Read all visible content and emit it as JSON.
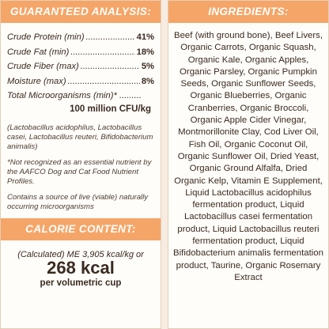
{
  "analysis": {
    "header": "GUARANTEED ANALYSIS:",
    "rows": [
      {
        "name": "Crude Protein (min)",
        "value": "41%"
      },
      {
        "name": "Crude Fat (min)",
        "value": "18%"
      },
      {
        "name": "Crude Fiber (max)",
        "value": "5%"
      },
      {
        "name": "Moisture (max)",
        "value": "8%"
      }
    ],
    "microorganisms_label": "Total Microorganisms (min)*",
    "microorganisms_value": "100 million CFU/kg",
    "strains_note": "(Lactobacillus acidophilus, Lactobacillus casei, Lactobacillus reuteri, Bifidobacterium animalis)",
    "aafco_note": "*Not recognized as an essential nutrient by the AAFCO Dog and Cat Food Nutrient Profiles.",
    "live_note": "Contains a source of live (viable) naturally occurring microorganisms"
  },
  "calorie": {
    "header": "CALORIE CONTENT:",
    "calculated": "(Calculated) ME 3,905 kcal/kg or",
    "kcal": "268 kcal",
    "unit": "per volumetric cup"
  },
  "ingredients": {
    "header": "INGREDIENTS:",
    "text": "Beef (with ground bone), Beef Livers, Organic Carrots, Organic Squash, Organic Kale, Organic Apples, Organic Parsley, Organic Pumpkin Seeds, Organic Sunflower Seeds, Organic Blueberries, Organic Cranberries, Organic Broccoli, Organic Apple Cider Vinegar, Montmorillonite Clay, Cod Liver Oil, Fish Oil, Organic Coconut Oil, Organic Sunflower Oil, Dried Yeast, Organic Ground Alfalfa, Dried Organic Kelp, Vitamin E Supplement, Liquid Lactobacillus acidophilus fermentation product, Liquid Lactobacillus casei fermentation product, Liquid Lactobacillus reuteri fermentation product, Liquid Bifidobacterium animalis fermentation product, Taurine, Organic Rosemary Extract"
  },
  "colors": {
    "header_bg": "#f5a567",
    "panel_bg": "#fffdf9",
    "page_bg": "#f7ece1"
  }
}
